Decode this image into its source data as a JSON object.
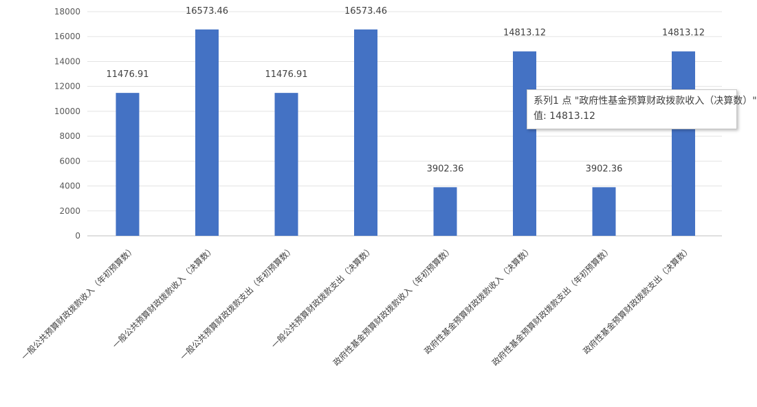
{
  "chart_data": {
    "type": "bar",
    "categories": [
      "一般公共预算财政拨款收入（年初预算数）",
      "一般公共预算财政拨款收入（决算数）",
      "一般公共预算财政拨款支出（年初预算数）",
      "一般公共预算财政拨款支出（决算数）",
      "政府性基金预算财政拨款收入（年初预算数）",
      "政府性基金预算财政拨款收入（决算数）",
      "政府性基金预算财政拨款支出（年初预算数）",
      "政府性基金预算财政拨款支出（决算数）"
    ],
    "series": [
      {
        "values": [
          11476.91,
          16573.46,
          11476.91,
          16573.46,
          3902.36,
          14813.12,
          3902.36,
          14813.12
        ],
        "color": "#4472c4"
      }
    ],
    "data_labels": [
      "11476.91",
      "16573.46",
      "11476.91",
      "16573.46",
      "3902.36",
      "14813.12",
      "3902.36",
      "14813.12"
    ],
    "y_ticks": [
      "0",
      "2000",
      "4000",
      "6000",
      "8000",
      "10000",
      "12000",
      "14000",
      "16000",
      "18000"
    ],
    "ylim": [
      0,
      18000
    ],
    "grid": true,
    "legend": "none"
  },
  "tooltip": {
    "line1": "系列1 点 \"政府性基金预算财政拨款收入（决算数）\"",
    "line2": "值: 14813.12"
  }
}
